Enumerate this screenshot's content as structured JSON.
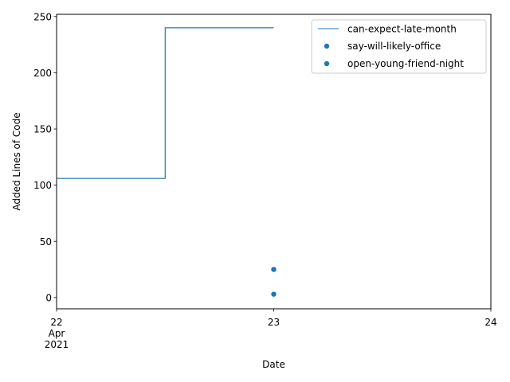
{
  "chart_data": {
    "type": "line",
    "xlabel": "Date",
    "ylabel": "Added Lines of Code",
    "xlim": [
      "2021-04-22",
      "2021-04-24"
    ],
    "ylim": [
      -10,
      252
    ],
    "x_ticks": [
      {
        "value": "2021-04-22",
        "lines": [
          "22",
          "Apr",
          "2021"
        ]
      },
      {
        "value": "2021-04-23",
        "lines": [
          "23"
        ]
      },
      {
        "value": "2021-04-24",
        "lines": [
          "24"
        ]
      }
    ],
    "y_ticks": [
      0,
      50,
      100,
      150,
      200,
      250
    ],
    "y_tick_labels": [
      "0",
      "50",
      "100",
      "150",
      "200",
      "250"
    ],
    "grid": false,
    "legend_position": "top-right",
    "series": [
      {
        "name": "can-expect-late-month",
        "type": "step",
        "color": "#1f77b4",
        "x": [
          "2021-04-22",
          "2021-04-22T12:00",
          "2021-04-22T12:00",
          "2021-04-23"
        ],
        "y": [
          106,
          106,
          240,
          240
        ]
      },
      {
        "name": "say-will-likely-office",
        "type": "scatter",
        "color": "#1f77b4",
        "x": [
          "2021-04-23"
        ],
        "y": [
          25
        ]
      },
      {
        "name": "open-young-friend-night",
        "type": "scatter",
        "color": "#1f77b4",
        "x": [
          "2021-04-23"
        ],
        "y": [
          3
        ]
      }
    ]
  }
}
